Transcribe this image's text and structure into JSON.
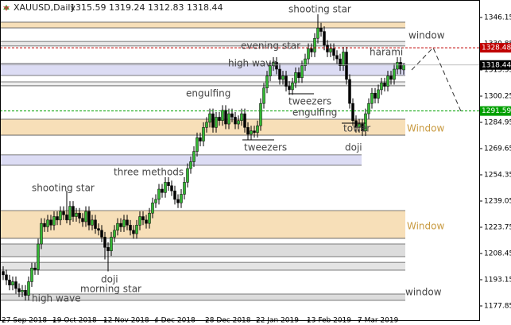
{
  "chart_data": {
    "type": "candlestick",
    "title": "XAUUSD,Daily",
    "categories": [
      "27 Sep 2018",
      null,
      null,
      null,
      null,
      null,
      null,
      null,
      null,
      null,
      null,
      null,
      null,
      null,
      null,
      null,
      "19 Oct 2018",
      null,
      null,
      null,
      null,
      null,
      null,
      null,
      null,
      null,
      null,
      null,
      null,
      null,
      null,
      null,
      "12 Nov 2018",
      null,
      null,
      null,
      null,
      null,
      null,
      null,
      null,
      null,
      null,
      null,
      null,
      null,
      null,
      null,
      "4 Dec 2018",
      null,
      null,
      null,
      null,
      null,
      null,
      null,
      null,
      null,
      null,
      null,
      null,
      null,
      null,
      null,
      "28 Dec 2018",
      null,
      null,
      null,
      null,
      null,
      null,
      null,
      null,
      null,
      null,
      null,
      null,
      null,
      null,
      null,
      "22 Jan 2019",
      null,
      null,
      null,
      null,
      null,
      null,
      null,
      null,
      null,
      null,
      null,
      null,
      null,
      null,
      null,
      "13 Feb 2019",
      null,
      null,
      null,
      null,
      null,
      null,
      null,
      null,
      null,
      null,
      null,
      null,
      null,
      null,
      null,
      "7 Mar 2019",
      null,
      null,
      null,
      null,
      null,
      null,
      null,
      null,
      null,
      null,
      null,
      null,
      null,
      null
    ],
    "candles": [
      [
        1198,
        1201,
        1193,
        1196
      ],
      [
        1196,
        1199,
        1190,
        1193
      ],
      [
        1193,
        1196,
        1187,
        1190
      ],
      [
        1190,
        1195,
        1187,
        1192
      ],
      [
        1192,
        1195,
        1185,
        1188
      ],
      [
        1188,
        1191,
        1183,
        1186
      ],
      [
        1186,
        1190,
        1183,
        1187
      ],
      [
        1187,
        1190,
        1181,
        1184
      ],
      [
        1184,
        1195,
        1181,
        1192
      ],
      [
        1192,
        1203,
        1189,
        1200
      ],
      [
        1200,
        1203,
        1196,
        1199
      ],
      [
        1199,
        1217,
        1196,
        1214
      ],
      [
        1214,
        1229,
        1211,
        1226
      ],
      [
        1226,
        1229,
        1221,
        1224
      ],
      [
        1224,
        1231,
        1221,
        1228
      ],
      [
        1228,
        1231,
        1222,
        1225
      ],
      [
        1225,
        1233,
        1222,
        1230
      ],
      [
        1230,
        1233,
        1225,
        1228
      ],
      [
        1228,
        1236,
        1225,
        1233
      ],
      [
        1233,
        1236,
        1228,
        1231
      ],
      [
        1231,
        1245,
        1226,
        1228
      ],
      [
        1228,
        1239,
        1225,
        1236
      ],
      [
        1236,
        1239,
        1227,
        1230
      ],
      [
        1230,
        1235,
        1227,
        1232
      ],
      [
        1232,
        1235,
        1226,
        1229
      ],
      [
        1229,
        1232,
        1224,
        1227
      ],
      [
        1227,
        1236,
        1224,
        1233
      ],
      [
        1233,
        1236,
        1222,
        1225
      ],
      [
        1225,
        1231,
        1222,
        1228
      ],
      [
        1228,
        1231,
        1220,
        1223
      ],
      [
        1223,
        1226,
        1219,
        1222
      ],
      [
        1222,
        1225,
        1215,
        1218
      ],
      [
        1218,
        1221,
        1205,
        1212
      ],
      [
        1212,
        1215,
        1198,
        1210
      ],
      [
        1210,
        1221,
        1207,
        1218
      ],
      [
        1218,
        1225,
        1215,
        1222
      ],
      [
        1222,
        1229,
        1219,
        1226
      ],
      [
        1226,
        1229,
        1221,
        1224
      ],
      [
        1224,
        1231,
        1221,
        1228
      ],
      [
        1228,
        1231,
        1222,
        1225
      ],
      [
        1225,
        1228,
        1219,
        1222
      ],
      [
        1222,
        1225,
        1217,
        1220
      ],
      [
        1220,
        1228,
        1217,
        1225
      ],
      [
        1225,
        1233,
        1222,
        1230
      ],
      [
        1230,
        1233,
        1225,
        1228
      ],
      [
        1228,
        1231,
        1223,
        1226
      ],
      [
        1226,
        1235,
        1223,
        1232
      ],
      [
        1232,
        1241,
        1229,
        1238
      ],
      [
        1238,
        1243,
        1235,
        1240
      ],
      [
        1240,
        1249,
        1237,
        1246
      ],
      [
        1246,
        1249,
        1241,
        1244
      ],
      [
        1244,
        1253,
        1241,
        1250
      ],
      [
        1250,
        1253,
        1245,
        1248
      ],
      [
        1248,
        1251,
        1242,
        1245
      ],
      [
        1245,
        1248,
        1237,
        1240
      ],
      [
        1240,
        1243,
        1235,
        1238
      ],
      [
        1238,
        1246,
        1235,
        1243
      ],
      [
        1243,
        1253,
        1240,
        1250
      ],
      [
        1250,
        1261,
        1247,
        1258
      ],
      [
        1258,
        1265,
        1255,
        1262
      ],
      [
        1262,
        1271,
        1259,
        1268
      ],
      [
        1268,
        1279,
        1265,
        1276
      ],
      [
        1276,
        1279,
        1271,
        1274
      ],
      [
        1274,
        1285,
        1271,
        1282
      ],
      [
        1282,
        1288,
        1279,
        1285
      ],
      [
        1285,
        1293,
        1282,
        1290
      ],
      [
        1290,
        1293,
        1279,
        1282
      ],
      [
        1282,
        1291,
        1279,
        1288
      ],
      [
        1288,
        1291,
        1283,
        1286
      ],
      [
        1286,
        1295,
        1283,
        1292
      ],
      [
        1292,
        1295,
        1281,
        1284
      ],
      [
        1284,
        1293,
        1281,
        1290
      ],
      [
        1290,
        1293,
        1285,
        1288
      ],
      [
        1288,
        1291,
        1281,
        1284
      ],
      [
        1284,
        1289,
        1281,
        1286
      ],
      [
        1286,
        1293,
        1283,
        1290
      ],
      [
        1290,
        1293,
        1279,
        1282
      ],
      [
        1282,
        1285,
        1275,
        1278
      ],
      [
        1278,
        1283,
        1275,
        1280
      ],
      [
        1280,
        1283,
        1276,
        1279
      ],
      [
        1279,
        1286,
        1276,
        1283
      ],
      [
        1283,
        1299,
        1280,
        1296
      ],
      [
        1296,
        1308,
        1293,
        1305
      ],
      [
        1305,
        1315,
        1302,
        1312
      ],
      [
        1312,
        1321,
        1309,
        1318
      ],
      [
        1318,
        1323,
        1315,
        1320
      ],
      [
        1320,
        1323,
        1313,
        1316
      ],
      [
        1316,
        1319,
        1307,
        1310
      ],
      [
        1310,
        1315,
        1307,
        1312
      ],
      [
        1312,
        1315,
        1303,
        1306
      ],
      [
        1306,
        1309,
        1301,
        1304
      ],
      [
        1304,
        1311,
        1301,
        1308
      ],
      [
        1308,
        1317,
        1305,
        1314
      ],
      [
        1314,
        1317,
        1308,
        1311
      ],
      [
        1311,
        1321,
        1308,
        1318
      ],
      [
        1318,
        1325,
        1315,
        1322
      ],
      [
        1322,
        1331,
        1319,
        1328
      ],
      [
        1328,
        1331,
        1323,
        1326
      ],
      [
        1326,
        1337,
        1323,
        1334
      ],
      [
        1334,
        1348,
        1331,
        1340
      ],
      [
        1340,
        1343,
        1335,
        1338
      ],
      [
        1338,
        1341,
        1327,
        1330
      ],
      [
        1330,
        1333,
        1323,
        1326
      ],
      [
        1326,
        1331,
        1323,
        1328
      ],
      [
        1328,
        1331,
        1321,
        1324
      ],
      [
        1324,
        1327,
        1319,
        1322
      ],
      [
        1322,
        1325,
        1315,
        1318
      ],
      [
        1318,
        1329,
        1315,
        1326
      ],
      [
        1326,
        1329,
        1307,
        1310
      ],
      [
        1310,
        1313,
        1293,
        1296
      ],
      [
        1296,
        1299,
        1283,
        1286
      ],
      [
        1286,
        1289,
        1279,
        1282
      ],
      [
        1282,
        1287,
        1279,
        1284
      ],
      [
        1284,
        1287,
        1277,
        1280
      ],
      [
        1280,
        1293,
        1277,
        1290
      ],
      [
        1290,
        1299,
        1287,
        1296
      ],
      [
        1296,
        1305,
        1293,
        1302
      ],
      [
        1302,
        1305,
        1296,
        1299
      ],
      [
        1299,
        1307,
        1296,
        1304
      ],
      [
        1304,
        1311,
        1301,
        1308
      ],
      [
        1308,
        1311,
        1303,
        1306
      ],
      [
        1306,
        1315,
        1303,
        1312
      ],
      [
        1312,
        1315,
        1307,
        1310
      ],
      [
        1310,
        1319,
        1307,
        1316
      ],
      [
        1316,
        1323,
        1313,
        1320
      ],
      [
        1320,
        1323,
        1313,
        1316
      ],
      [
        1315.59,
        1319.24,
        1312.83,
        1318.44
      ]
    ],
    "up_color": "#33b833",
    "down_color": "#000000",
    "ylim": [
      1169.97,
      1356.35
    ],
    "yticks": [
      1177.85,
      1193.15,
      1208.45,
      1223.75,
      1239.05,
      1254.35,
      1269.65,
      1284.95,
      1300.25,
      1315.55,
      1330.85,
      1346.15
    ],
    "levels": [
      {
        "value": 1328.48,
        "color": "#c00000"
      },
      {
        "value": 1291.59,
        "color": "#00a000"
      }
    ],
    "zones": [
      {
        "low": 1340.1,
        "high": 1343.4,
        "color": "#f7dfb8"
      },
      {
        "low": 1329.5,
        "high": 1332.2,
        "color": "#e8e8e8"
      },
      {
        "low": 1312.3,
        "high": 1319.3,
        "color": "#dcdcf4"
      },
      {
        "low": 1306.3,
        "high": 1308.6,
        "color": "#eeeeee"
      },
      {
        "low": 1277.5,
        "high": 1286.8,
        "color": "#f7dfb8"
      },
      {
        "low": 1259.9,
        "high": 1266.0,
        "color": "#dcdcf4"
      },
      {
        "low": 1217.3,
        "high": 1233.5,
        "color": "#f7dfb8"
      },
      {
        "low": 1206.6,
        "high": 1214.0,
        "color": "#dcdcdc"
      },
      {
        "low": 1198.7,
        "high": 1203.3,
        "color": "#e4e4e4"
      },
      {
        "low": 1181.1,
        "high": 1184.8,
        "color": "#dcdcdc"
      }
    ],
    "annotations": [
      "shooting star",
      "evening star",
      "window",
      "high wave",
      "harami",
      "engulfing",
      "tweezers",
      "engulfing",
      "tower",
      "Window",
      "tweezers",
      "doji",
      "three methods",
      "shooting star",
      "Window",
      "doji",
      "morning star",
      "high wave",
      "window"
    ]
  }
}
